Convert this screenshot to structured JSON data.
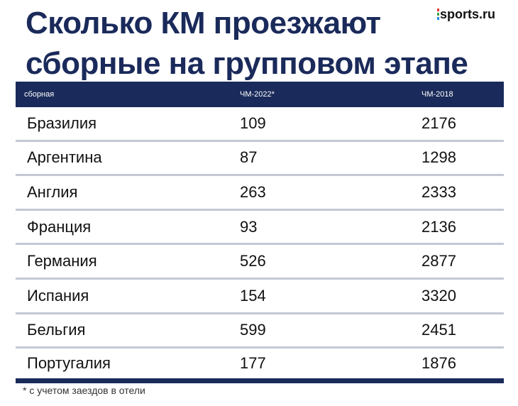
{
  "title": {
    "line1": "Сколько КМ проезжают",
    "line2": "сборные на групповом этапе"
  },
  "brand": {
    "name": "sports.ru"
  },
  "colors": {
    "accent": "#1a2a5a",
    "divider": "#c3c8d4"
  },
  "table": {
    "headers": [
      "сборная",
      "ЧМ-2022*",
      "ЧМ-2018"
    ],
    "rows": [
      [
        "Бразилия",
        "109",
        "2176"
      ],
      [
        "Аргентина",
        "87",
        "1298"
      ],
      [
        "Англия",
        "263",
        "2333"
      ],
      [
        "Франция",
        "93",
        "2136"
      ],
      [
        "Германия",
        "526",
        "2877"
      ],
      [
        "Испания",
        "154",
        "3320"
      ],
      [
        "Бельгия",
        "599",
        "2451"
      ],
      [
        "Португалия",
        "177",
        "1876"
      ]
    ]
  },
  "footnote": "* с учетом заездов в отели"
}
